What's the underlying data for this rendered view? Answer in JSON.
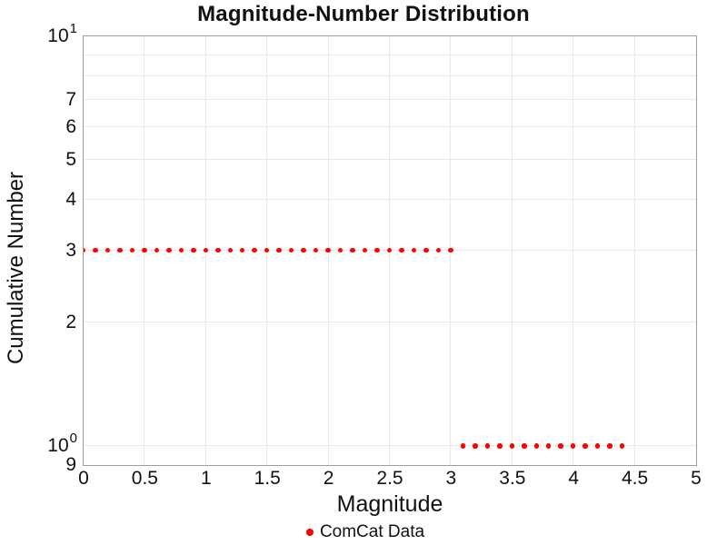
{
  "chart_data": {
    "type": "scatter",
    "title": "Magnitude-Number Distribution",
    "xlabel": "Magnitude",
    "ylabel": "Cumulative Number",
    "grid": true,
    "legend_position": "bottom-center",
    "x_axis": {
      "scale": "linear",
      "min": 0,
      "max": 5,
      "ticks": [
        {
          "v": 0,
          "label": "0"
        },
        {
          "v": 0.5,
          "label": "0.5"
        },
        {
          "v": 1,
          "label": "1"
        },
        {
          "v": 1.5,
          "label": "1.5"
        },
        {
          "v": 2,
          "label": "2"
        },
        {
          "v": 2.5,
          "label": "2.5"
        },
        {
          "v": 3,
          "label": "3"
        },
        {
          "v": 3.5,
          "label": "3.5"
        },
        {
          "v": 4,
          "label": "4"
        },
        {
          "v": 4.5,
          "label": "4.5"
        },
        {
          "v": 5,
          "label": "5"
        }
      ],
      "grid_values": [
        0.5,
        1,
        1.5,
        2,
        2.5,
        3,
        3.5,
        4,
        4.5
      ]
    },
    "y_axis": {
      "scale": "log",
      "min": 0.9,
      "max": 10,
      "ticks": [
        {
          "v": 10,
          "label": "10^1"
        },
        {
          "v": 7,
          "label": "7"
        },
        {
          "v": 6,
          "label": "6"
        },
        {
          "v": 5,
          "label": "5"
        },
        {
          "v": 4,
          "label": "4"
        },
        {
          "v": 3,
          "label": "3"
        },
        {
          "v": 2,
          "label": "2"
        },
        {
          "v": 1,
          "label": "10^0"
        },
        {
          "v": 0.9,
          "label": "9"
        }
      ],
      "grid_values": [
        1,
        2,
        3,
        4,
        5,
        6,
        7,
        8,
        9
      ]
    },
    "legend": [
      {
        "label": "ComCat Data",
        "color": "#ff0000",
        "marker": "dot"
      }
    ],
    "series": [
      {
        "name": "ComCat Data",
        "color": "#ff0000",
        "marker": "dot",
        "points": [
          [
            0,
            3
          ],
          [
            0.1,
            3
          ],
          [
            0.2,
            3
          ],
          [
            0.3,
            3
          ],
          [
            0.4,
            3
          ],
          [
            0.5,
            3
          ],
          [
            0.6,
            3
          ],
          [
            0.7,
            3
          ],
          [
            0.8,
            3
          ],
          [
            0.9,
            3
          ],
          [
            1,
            3
          ],
          [
            1.1,
            3
          ],
          [
            1.2,
            3
          ],
          [
            1.3,
            3
          ],
          [
            1.4,
            3
          ],
          [
            1.5,
            3
          ],
          [
            1.6,
            3
          ],
          [
            1.7,
            3
          ],
          [
            1.8,
            3
          ],
          [
            1.9,
            3
          ],
          [
            2,
            3
          ],
          [
            2.1,
            3
          ],
          [
            2.2,
            3
          ],
          [
            2.3,
            3
          ],
          [
            2.4,
            3
          ],
          [
            2.5,
            3
          ],
          [
            2.6,
            3
          ],
          [
            2.7,
            3
          ],
          [
            2.8,
            3
          ],
          [
            2.9,
            3
          ],
          [
            3,
            3
          ],
          [
            3.1,
            1
          ],
          [
            3.2,
            1
          ],
          [
            3.3,
            1
          ],
          [
            3.4,
            1
          ],
          [
            3.5,
            1
          ],
          [
            3.6,
            1
          ],
          [
            3.7,
            1
          ],
          [
            3.8,
            1
          ],
          [
            3.9,
            1
          ],
          [
            4,
            1
          ],
          [
            4.1,
            1
          ],
          [
            4.2,
            1
          ],
          [
            4.3,
            1
          ],
          [
            4.4,
            1
          ]
        ]
      }
    ],
    "colors": {
      "marker": "#ff0000",
      "gridline": "#e9e9e9",
      "spine": "#9e9e9e",
      "text": "#111111"
    }
  }
}
